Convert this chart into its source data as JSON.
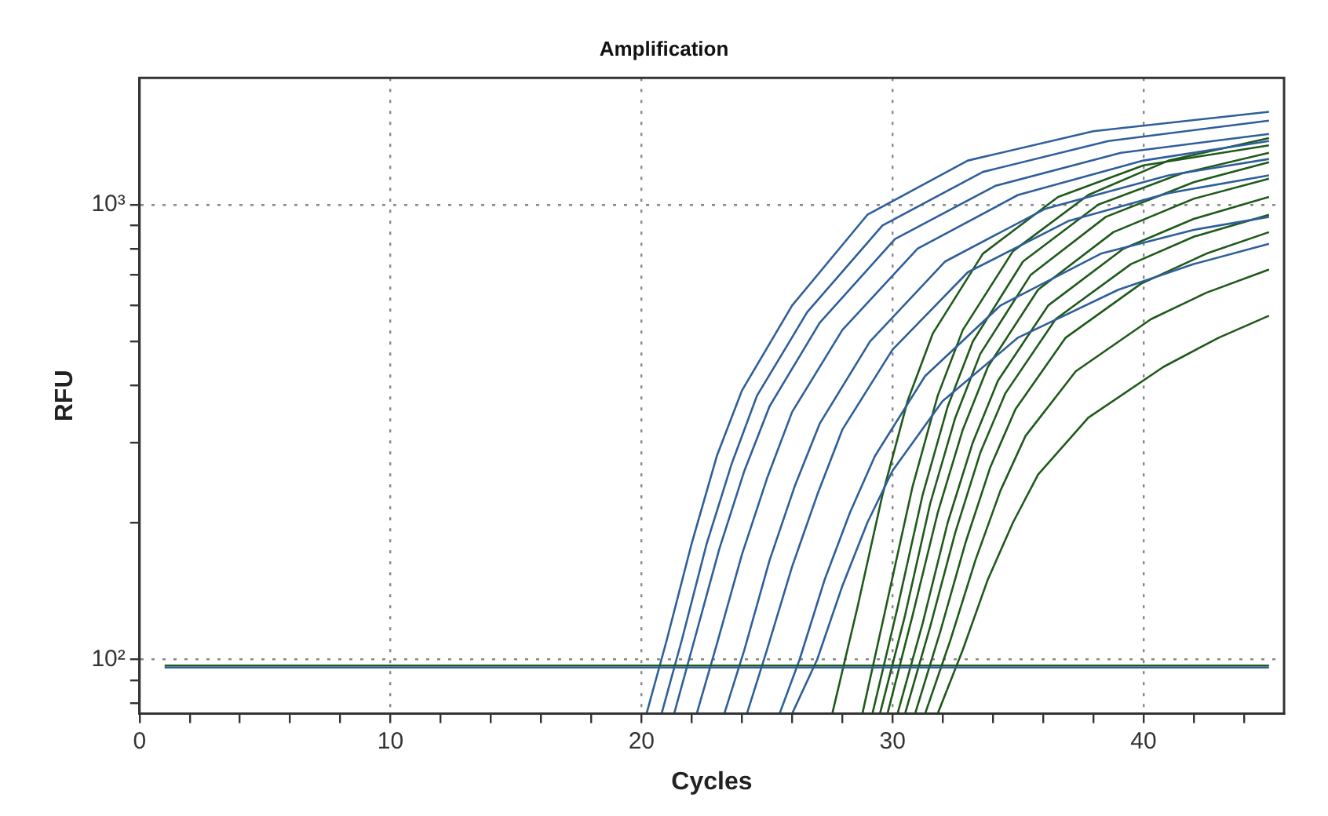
{
  "chart_data": {
    "type": "line",
    "title": "Amplification",
    "xlabel": "Cycles",
    "ylabel": "RFU",
    "log": "y",
    "grid": true,
    "legend": false,
    "marker": "none",
    "line_style": "solid",
    "xlim": [
      0,
      45.6
    ],
    "xticks": [
      0,
      {
        "value": 2,
        "label": null
      },
      {
        "value": 4,
        "label": null
      },
      {
        "value": 6,
        "label": null
      },
      {
        "value": 8,
        "label": null
      },
      10,
      {
        "value": 12,
        "label": null
      },
      {
        "value": 14,
        "label": null
      },
      {
        "value": 16,
        "label": null
      },
      {
        "value": 18,
        "label": null
      },
      20,
      {
        "value": 22,
        "label": null
      },
      {
        "value": 24,
        "label": null
      },
      {
        "value": 26,
        "label": null
      },
      {
        "value": 28,
        "label": null
      },
      30,
      {
        "value": 32,
        "label": null
      },
      {
        "value": 34,
        "label": null
      },
      {
        "value": 36,
        "label": null
      },
      {
        "value": 38,
        "label": null
      },
      40,
      {
        "value": 42,
        "label": null
      },
      {
        "value": 44,
        "label": null
      }
    ],
    "ylim": [
      76,
      1900
    ],
    "yticks": [
      {
        "value": 80,
        "label": null
      },
      {
        "value": 90,
        "label": null
      },
      {
        "value": 100,
        "label": "10²"
      },
      {
        "value": 200,
        "label": null
      },
      {
        "value": 300,
        "label": null
      },
      {
        "value": 400,
        "label": null
      },
      {
        "value": 500,
        "label": null
      },
      {
        "value": 600,
        "label": null
      },
      {
        "value": 700,
        "label": null
      },
      {
        "value": 800,
        "label": null
      },
      {
        "value": 900,
        "label": null
      },
      {
        "value": 1000,
        "label": "10³"
      }
    ],
    "series": [
      {
        "color": "#2e5f9a",
        "x": [
          1,
          45
        ],
        "values": [
          96,
          96
        ]
      },
      {
        "color": "#1f5a1a",
        "x": [
          1,
          45
        ],
        "values": [
          97,
          97
        ]
      },
      {
        "color": "#2e5f9a",
        "x": [
          20.2,
          21,
          22,
          23,
          24,
          26,
          29,
          33,
          38,
          45
        ],
        "values": [
          76,
          110,
          180,
          280,
          390,
          600,
          950,
          1250,
          1450,
          1600
        ]
      },
      {
        "color": "#2e5f9a",
        "x": [
          20.8,
          21.6,
          22.6,
          23.6,
          24.6,
          26.6,
          29.6,
          33.6,
          38.6,
          45
        ],
        "values": [
          76,
          110,
          180,
          270,
          380,
          580,
          900,
          1180,
          1380,
          1530
        ]
      },
      {
        "color": "#2e5f9a",
        "x": [
          21.3,
          22.1,
          23.1,
          24.1,
          25.1,
          27.1,
          30.1,
          34.1,
          39.1,
          45
        ],
        "values": [
          76,
          110,
          175,
          260,
          360,
          550,
          840,
          1100,
          1300,
          1430
        ]
      },
      {
        "color": "#2e5f9a",
        "x": [
          22.2,
          23,
          24,
          25,
          26,
          28,
          31,
          35,
          40,
          45
        ],
        "values": [
          76,
          108,
          170,
          250,
          350,
          530,
          800,
          1050,
          1250,
          1380
        ]
      },
      {
        "color": "#2e5f9a",
        "x": [
          23.3,
          24.1,
          25.1,
          26.1,
          27.1,
          29.1,
          32.1,
          36.1,
          41,
          45
        ],
        "values": [
          76,
          105,
          165,
          240,
          330,
          500,
          750,
          980,
          1160,
          1260
        ]
      },
      {
        "color": "#2e5f9a",
        "x": [
          24.2,
          25,
          26,
          27,
          28,
          30,
          33,
          37,
          41,
          45
        ],
        "values": [
          76,
          105,
          160,
          230,
          320,
          480,
          710,
          920,
          1060,
          1160
        ]
      },
      {
        "color": "#2e5f9a",
        "x": [
          25.5,
          26.3,
          27.3,
          28.3,
          29.3,
          31.3,
          34.3,
          38.3,
          42,
          45
        ],
        "values": [
          76,
          100,
          150,
          210,
          280,
          420,
          600,
          780,
          880,
          940
        ]
      },
      {
        "color": "#2e5f9a",
        "x": [
          26,
          27,
          28,
          29,
          30,
          32,
          35,
          39,
          42,
          45
        ],
        "values": [
          76,
          100,
          145,
          200,
          260,
          370,
          510,
          650,
          740,
          820
        ]
      },
      {
        "color": "#1f5a1a",
        "x": [
          27.6,
          28.6,
          29.6,
          30.6,
          31.6,
          33.6,
          36.6,
          40,
          45
        ],
        "values": [
          76,
          130,
          230,
          370,
          520,
          780,
          1040,
          1220,
          1350
        ]
      },
      {
        "color": "#1f5a1a",
        "x": [
          28.8,
          29.8,
          30.8,
          31.8,
          32.8,
          34.8,
          37.8,
          41,
          45
        ],
        "values": [
          76,
          135,
          240,
          380,
          530,
          790,
          1050,
          1250,
          1400
        ]
      },
      {
        "color": "#1f5a1a",
        "x": [
          29.2,
          30.2,
          31.2,
          32.2,
          33.2,
          35.2,
          38.2,
          41.5,
          45
        ],
        "values": [
          76,
          130,
          230,
          360,
          500,
          750,
          1000,
          1170,
          1300
        ]
      },
      {
        "color": "#1f5a1a",
        "x": [
          29.5,
          30.5,
          31.5,
          32.5,
          33.5,
          35.5,
          38.5,
          42,
          45
        ],
        "values": [
          76,
          125,
          220,
          340,
          470,
          700,
          940,
          1120,
          1240
        ]
      },
      {
        "color": "#1f5a1a",
        "x": [
          29.8,
          30.8,
          31.8,
          32.8,
          33.8,
          35.8,
          38.8,
          42,
          45
        ],
        "values": [
          76,
          125,
          210,
          320,
          440,
          650,
          870,
          1030,
          1140
        ]
      },
      {
        "color": "#1f5a1a",
        "x": [
          30.2,
          31.2,
          32.2,
          33.2,
          34.2,
          36.2,
          39.2,
          42,
          45
        ],
        "values": [
          76,
          120,
          200,
          300,
          410,
          600,
          800,
          930,
          1040
        ]
      },
      {
        "color": "#1f5a1a",
        "x": [
          30.5,
          31.5,
          32.5,
          33.5,
          34.5,
          36.5,
          39.5,
          42,
          45
        ],
        "values": [
          76,
          118,
          190,
          285,
          385,
          560,
          740,
          850,
          950
        ]
      },
      {
        "color": "#1f5a1a",
        "x": [
          30.9,
          31.9,
          32.9,
          33.9,
          34.9,
          36.9,
          39.9,
          42.5,
          45
        ],
        "values": [
          76,
          115,
          180,
          265,
          355,
          510,
          670,
          780,
          870
        ]
      },
      {
        "color": "#1f5a1a",
        "x": [
          31.3,
          32.3,
          33.3,
          34.3,
          35.3,
          37.3,
          40.3,
          42.5,
          45
        ],
        "values": [
          76,
          110,
          165,
          235,
          310,
          430,
          560,
          640,
          720
        ]
      },
      {
        "color": "#1f5a1a",
        "x": [
          31.8,
          32.8,
          33.8,
          34.8,
          35.8,
          37.8,
          40.8,
          43,
          45
        ],
        "values": [
          76,
          105,
          150,
          200,
          255,
          340,
          440,
          510,
          570
        ]
      }
    ]
  }
}
